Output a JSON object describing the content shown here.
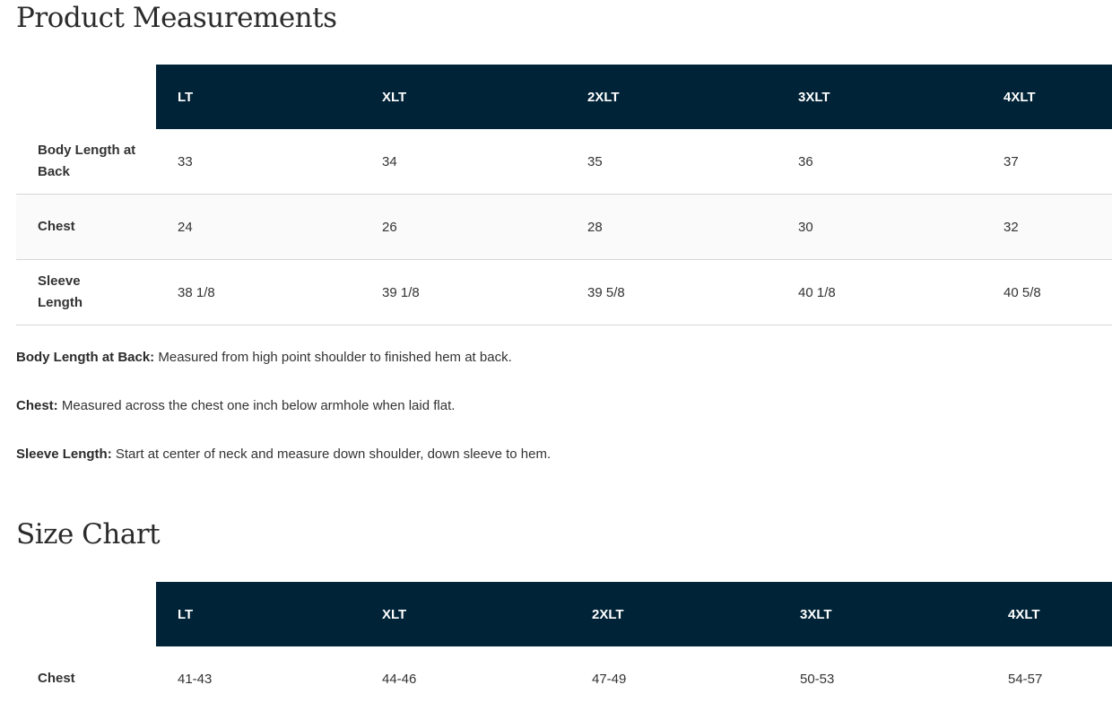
{
  "measurements": {
    "title": "Product Measurements",
    "columns": [
      "LT",
      "XLT",
      "2XLT",
      "3XLT",
      "4XLT"
    ],
    "rows": [
      {
        "label": "Body Length at Back",
        "values": [
          "33",
          "34",
          "35",
          "36",
          "37"
        ]
      },
      {
        "label": "Chest",
        "values": [
          "24",
          "26",
          "28",
          "30",
          "32"
        ]
      },
      {
        "label": "Sleeve Length",
        "values": [
          "38 1/8",
          "39 1/8",
          "39 5/8",
          "40 1/8",
          "40 5/8"
        ]
      }
    ],
    "notes": [
      {
        "term": "Body Length at Back:",
        "text": " Measured from high point shoulder to finished hem at back."
      },
      {
        "term": "Chest:",
        "text": " Measured across the chest one inch below armhole when laid flat."
      },
      {
        "term": "Sleeve Length:",
        "text": " Start at center of neck and measure down shoulder, down sleeve to hem."
      }
    ]
  },
  "size_chart": {
    "title": "Size Chart",
    "columns": [
      "LT",
      "XLT",
      "2XLT",
      "3XLT",
      "4XLT"
    ],
    "rows": [
      {
        "label": "Chest",
        "values": [
          "41-43",
          "44-46",
          "47-49",
          "50-53",
          "54-57"
        ]
      }
    ]
  },
  "colors": {
    "header_bg": "#002337",
    "header_text": "#ffffff"
  }
}
